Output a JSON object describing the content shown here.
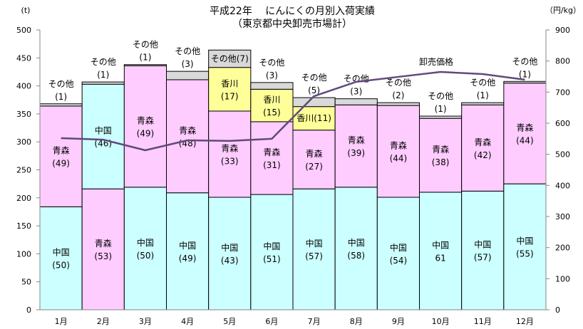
{
  "chart_data": {
    "type": "bar",
    "stacked": true,
    "title": "平成22年　 にんにくの月別入荷実績",
    "subtitle": "（東京都中央卸売市場計）",
    "y_left_unit": "(t)",
    "y_right_unit": "（円/kg）",
    "ylim_left": [
      0,
      500
    ],
    "ylim_right": [
      0,
      900
    ],
    "yticks_left": [
      0,
      50,
      100,
      150,
      200,
      250,
      300,
      350,
      400,
      450,
      500
    ],
    "yticks_right": [
      0,
      100,
      200,
      300,
      400,
      500,
      600,
      700,
      800,
      900
    ],
    "grid": false,
    "categories": [
      "1月",
      "2月",
      "3月",
      "4月",
      "5月",
      "6月",
      "7月",
      "8月",
      "9月",
      "10月",
      "11月",
      "12月"
    ],
    "colors": {
      "中国": "#ccffff",
      "青森": "#ffccff",
      "香川": "#ffff99",
      "その他": "#d9d9d9",
      "price": "#604a7b"
    },
    "months": [
      {
        "segments": [
          {
            "name": "中国",
            "value": 184,
            "label": "(50)"
          },
          {
            "name": "青森",
            "value": 180,
            "label": "(49)"
          },
          {
            "name": "その他",
            "value": 4,
            "label": "(1)",
            "label_position": "above"
          }
        ]
      },
      {
        "segments": [
          {
            "name": "青森",
            "value": 216,
            "label": "(53)"
          },
          {
            "name": "中国",
            "value": 187,
            "label": "(46)"
          },
          {
            "name": "その他",
            "value": 4,
            "label": "(1)",
            "label_position": "above"
          }
        ]
      },
      {
        "segments": [
          {
            "name": "中国",
            "value": 219,
            "label": "(50)"
          },
          {
            "name": "青森",
            "value": 217,
            "label": "(49)"
          },
          {
            "name": "その他",
            "value": 2,
            "label": "(1)",
            "label_position": "above"
          }
        ]
      },
      {
        "segments": [
          {
            "name": "中国",
            "value": 209,
            "label": "(49)"
          },
          {
            "name": "青森",
            "value": 202,
            "label": "(48)"
          },
          {
            "name": "その他",
            "value": 15,
            "label": "(3)",
            "label_position": "above"
          }
        ]
      },
      {
        "segments": [
          {
            "name": "中国",
            "value": 201,
            "label": "(43)"
          },
          {
            "name": "青森",
            "value": 154,
            "label": "(33)"
          },
          {
            "name": "香川",
            "value": 78,
            "label": "(17)"
          },
          {
            "name": "その他",
            "value": 31,
            "label": "(7)",
            "label_position": "inline"
          }
        ]
      },
      {
        "segments": [
          {
            "name": "中国",
            "value": 206,
            "label": "(51)"
          },
          {
            "name": "青森",
            "value": 130,
            "label": "(31)"
          },
          {
            "name": "香川",
            "value": 58,
            "label": "(15)"
          },
          {
            "name": "その他",
            "value": 12,
            "label": "(3)",
            "label_position": "above"
          }
        ]
      },
      {
        "segments": [
          {
            "name": "中国",
            "value": 216,
            "label": "(57)"
          },
          {
            "name": "青森",
            "value": 105,
            "label": "(27)"
          },
          {
            "name": "香川",
            "value": 42,
            "label": "(11)",
            "label_position": "inline"
          },
          {
            "name": "その他",
            "value": 16,
            "label": "(5)",
            "label_position": "above"
          }
        ]
      },
      {
        "segments": [
          {
            "name": "中国",
            "value": 219,
            "label": "(58)"
          },
          {
            "name": "青森",
            "value": 147,
            "label": "(39)"
          },
          {
            "name": "その他",
            "value": 11,
            "label": "(3)",
            "label_position": "above"
          }
        ]
      },
      {
        "segments": [
          {
            "name": "中国",
            "value": 201,
            "label": "(54)"
          },
          {
            "name": "青森",
            "value": 164,
            "label": "(44)"
          },
          {
            "name": "その他",
            "value": 5,
            "label": "(2)",
            "label_position": "above"
          }
        ]
      },
      {
        "segments": [
          {
            "name": "中国",
            "value": 210,
            "label": "61"
          },
          {
            "name": "青森",
            "value": 132,
            "label": "(38)"
          },
          {
            "name": "その他",
            "value": 4,
            "label": "(1)",
            "label_position": "above"
          }
        ]
      },
      {
        "segments": [
          {
            "name": "中国",
            "value": 212,
            "label": "(57)"
          },
          {
            "name": "青森",
            "value": 154,
            "label": "(42)"
          },
          {
            "name": "その他",
            "value": 4,
            "label": "(1)",
            "label_position": "above"
          }
        ]
      },
      {
        "segments": [
          {
            "name": "中国",
            "value": 225,
            "label": "(55)"
          },
          {
            "name": "青森",
            "value": 180,
            "label": "(44)"
          },
          {
            "name": "その他",
            "value": 3,
            "label": "(1)",
            "label_position": "above"
          }
        ]
      }
    ],
    "price_series": {
      "name": "卸売価格",
      "axis": "right",
      "values": [
        552,
        547,
        513,
        545,
        543,
        550,
        687,
        733,
        749,
        765,
        758,
        740
      ]
    }
  }
}
